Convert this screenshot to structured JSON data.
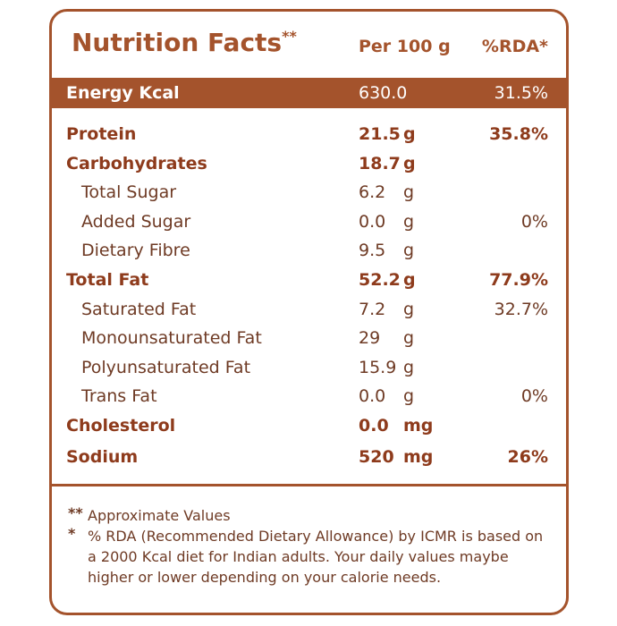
{
  "header": {
    "title": "Nutrition Facts",
    "title_mark": "**",
    "per": "Per 100 g",
    "rda": "%RDA*"
  },
  "energy": {
    "name": "Energy Kcal",
    "value": "630.0",
    "rda": "31.5%"
  },
  "groups": [
    {
      "name": "Protein",
      "value": "21.5",
      "unit": "g",
      "rda": "35.8%"
    },
    {
      "name": "Carbohydrates",
      "value": "18.7",
      "unit": "g",
      "items": [
        {
          "name": "Total Sugar",
          "value": "6.2",
          "unit": "g"
        },
        {
          "name": "Added Sugar",
          "value": "0.0",
          "unit": "g",
          "rda": "0%"
        },
        {
          "name": "Dietary Fibre",
          "value": "9.5",
          "unit": "g"
        }
      ]
    },
    {
      "name": "Total Fat",
      "value": "52.2",
      "unit": "g",
      "rda": "77.9%",
      "items": [
        {
          "name": "Saturated Fat",
          "value": "7.2",
          "unit": "g",
          "rda": "32.7%"
        },
        {
          "name": "Monounsaturated Fat",
          "value": "29",
          "unit": "g"
        },
        {
          "name": "Polyunsaturated Fat",
          "value": "15.9",
          "unit": "g"
        },
        {
          "name": "Trans Fat",
          "value": "0.0",
          "unit": "g",
          "rda": "0%"
        }
      ]
    },
    {
      "name": "Cholesterol",
      "value": "0.0",
      "unit": "mg"
    },
    {
      "name": "Sodium",
      "value": "520",
      "unit": "mg",
      "rda": "26%"
    }
  ],
  "footnotes": [
    {
      "mark": "**",
      "text": "Approximate Values"
    },
    {
      "mark": "*",
      "text": "% RDA (Recommended Dietary Allowance) by ICMR is based on a 2000 Kcal diet for Indian adults. Your daily values maybe higher or lower depending on your calorie needs."
    }
  ]
}
